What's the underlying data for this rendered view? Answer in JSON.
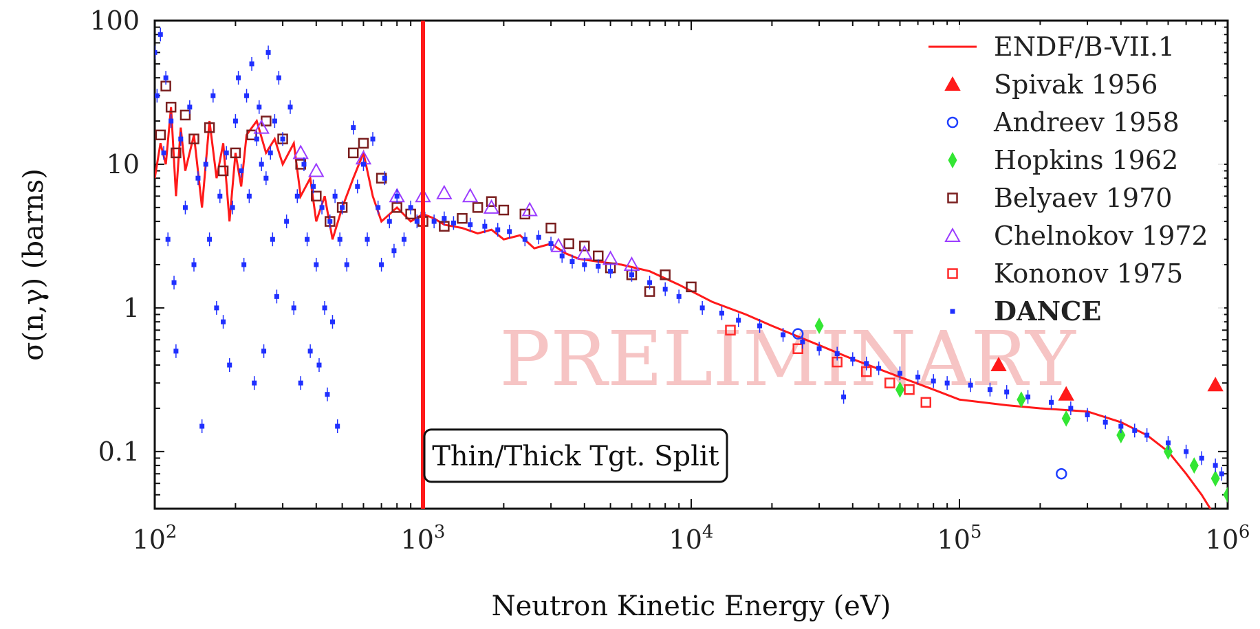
{
  "chart_data": {
    "type": "scatter",
    "xlabel": "Neutron Kinetic Energy (eV)",
    "ylabel": "σ(n,γ) (barns)",
    "xscale": "log",
    "yscale": "log",
    "xlim": [
      100,
      1000000
    ],
    "ylim": [
      0.04,
      100
    ],
    "x_ticks": [
      {
        "value": 100,
        "base": "10",
        "exp": "2"
      },
      {
        "value": 1000,
        "base": "10",
        "exp": "3"
      },
      {
        "value": 10000,
        "base": "10",
        "exp": "4"
      },
      {
        "value": 100000,
        "base": "10",
        "exp": "5"
      },
      {
        "value": 1000000,
        "base": "10",
        "exp": "6"
      }
    ],
    "y_ticks": [
      {
        "value": 100,
        "label": "100"
      },
      {
        "value": 10,
        "label": "10"
      },
      {
        "value": 1,
        "label": "1"
      },
      {
        "value": 0.1,
        "label": "0.1"
      }
    ],
    "watermark": "PRELIMINARY",
    "annotation": {
      "text": "Thin/Thick Tgt. Split",
      "x": 1000
    },
    "legend_position": "top-right",
    "colors": {
      "endf": "#ff1a1a",
      "spivak": "#ff1a1a",
      "andreev": "#1f3fff",
      "hopkins": "#33e633",
      "belyaev": "#7a1f1f",
      "chelnokov": "#9b3cff",
      "kononov": "#ff2a2a",
      "dance": "#1f2fff",
      "split_line": "#ff1a1a"
    },
    "series": [
      {
        "name": "ENDF/B-VII.1",
        "key": "endf",
        "marker": "line",
        "points": [
          [
            100,
            8
          ],
          [
            105,
            14
          ],
          [
            110,
            10
          ],
          [
            115,
            25
          ],
          [
            120,
            6
          ],
          [
            125,
            18
          ],
          [
            130,
            9
          ],
          [
            140,
            16
          ],
          [
            150,
            5
          ],
          [
            160,
            20
          ],
          [
            170,
            8
          ],
          [
            180,
            14
          ],
          [
            190,
            4
          ],
          [
            200,
            12
          ],
          [
            210,
            7
          ],
          [
            220,
            16
          ],
          [
            240,
            20
          ],
          [
            260,
            12
          ],
          [
            280,
            15
          ],
          [
            300,
            10
          ],
          [
            330,
            14
          ],
          [
            350,
            6
          ],
          [
            380,
            8
          ],
          [
            400,
            4
          ],
          [
            430,
            6
          ],
          [
            460,
            3
          ],
          [
            500,
            5
          ],
          [
            550,
            8
          ],
          [
            600,
            12
          ],
          [
            650,
            6
          ],
          [
            700,
            4
          ],
          [
            800,
            5
          ],
          [
            900,
            4
          ],
          [
            1000,
            4.5
          ],
          [
            1100,
            4.2
          ],
          [
            1200,
            3.8
          ],
          [
            1400,
            3.6
          ],
          [
            1600,
            3.3
          ],
          [
            1800,
            3.5
          ],
          [
            2000,
            3.0
          ],
          [
            2300,
            3.2
          ],
          [
            2600,
            2.6
          ],
          [
            3000,
            2.8
          ],
          [
            3400,
            2.4
          ],
          [
            3800,
            2.2
          ],
          [
            4500,
            2.1
          ],
          [
            5500,
            2.0
          ],
          [
            7000,
            1.8
          ],
          [
            9000,
            1.45
          ],
          [
            12000,
            1.1
          ],
          [
            16000,
            0.9
          ],
          [
            20000,
            0.75
          ],
          [
            30000,
            0.55
          ],
          [
            40000,
            0.44
          ],
          [
            60000,
            0.33
          ],
          [
            80000,
            0.27
          ],
          [
            100000,
            0.23
          ],
          [
            150000,
            0.21
          ],
          [
            200000,
            0.2
          ],
          [
            300000,
            0.19
          ],
          [
            400000,
            0.16
          ],
          [
            500000,
            0.13
          ],
          [
            600000,
            0.1
          ],
          [
            700000,
            0.07
          ],
          [
            800000,
            0.05
          ],
          [
            900000,
            0.035
          ]
        ]
      },
      {
        "name": "Spivak 1956",
        "key": "spivak",
        "marker": "triangle-filled",
        "points": [
          [
            140000,
            0.4
          ],
          [
            250000,
            0.25
          ],
          [
            900000,
            0.29
          ]
        ]
      },
      {
        "name": "Andreev 1958",
        "key": "andreev",
        "marker": "circle-open",
        "points": [
          [
            25000,
            0.66
          ],
          [
            240000,
            0.07
          ]
        ]
      },
      {
        "name": "Hopkins 1962",
        "key": "hopkins",
        "marker": "diamond-filled",
        "points": [
          [
            30000,
            0.75
          ],
          [
            60000,
            0.27
          ],
          [
            170000,
            0.23
          ],
          [
            250000,
            0.17
          ],
          [
            400000,
            0.13
          ],
          [
            600000,
            0.1
          ],
          [
            750000,
            0.08
          ],
          [
            900000,
            0.065
          ],
          [
            1000000,
            0.05
          ]
        ]
      },
      {
        "name": "Belyaev 1970",
        "key": "belyaev",
        "marker": "square-open",
        "points": [
          [
            105,
            16
          ],
          [
            110,
            35
          ],
          [
            115,
            25
          ],
          [
            120,
            12
          ],
          [
            130,
            22
          ],
          [
            140,
            15
          ],
          [
            160,
            18
          ],
          [
            180,
            9
          ],
          [
            200,
            12
          ],
          [
            230,
            16
          ],
          [
            260,
            20
          ],
          [
            300,
            15
          ],
          [
            350,
            10
          ],
          [
            400,
            6
          ],
          [
            450,
            4
          ],
          [
            500,
            5
          ],
          [
            550,
            12
          ],
          [
            600,
            14
          ],
          [
            700,
            8
          ],
          [
            800,
            5
          ],
          [
            900,
            4.5
          ],
          [
            1000,
            4
          ],
          [
            1200,
            3.7
          ],
          [
            1400,
            4.2
          ],
          [
            1600,
            5
          ],
          [
            1800,
            5.5
          ],
          [
            2000,
            4.8
          ],
          [
            2400,
            4.5
          ],
          [
            3000,
            3.6
          ],
          [
            3500,
            2.8
          ],
          [
            4000,
            2.7
          ],
          [
            4500,
            2.3
          ],
          [
            5000,
            1.9
          ],
          [
            6000,
            1.7
          ],
          [
            7000,
            1.3
          ],
          [
            8000,
            1.7
          ],
          [
            10000,
            1.4
          ]
        ]
      },
      {
        "name": "Chelnokov 1972",
        "key": "chelnokov",
        "marker": "triangle-open",
        "points": [
          [
            250,
            18
          ],
          [
            350,
            12
          ],
          [
            400,
            9
          ],
          [
            600,
            11
          ],
          [
            800,
            6
          ],
          [
            1000,
            6
          ],
          [
            1200,
            6.3
          ],
          [
            1500,
            6
          ],
          [
            1800,
            5
          ],
          [
            2500,
            4.8
          ],
          [
            3200,
            2.7
          ],
          [
            4000,
            2.4
          ],
          [
            5000,
            2.2
          ],
          [
            6000,
            2.0
          ]
        ]
      },
      {
        "name": "Kononov 1975",
        "key": "kononov",
        "marker": "square-open",
        "points": [
          [
            14000,
            0.7
          ],
          [
            25000,
            0.52
          ],
          [
            35000,
            0.42
          ],
          [
            45000,
            0.36
          ],
          [
            55000,
            0.3
          ],
          [
            65000,
            0.27
          ],
          [
            75000,
            0.22
          ]
        ]
      },
      {
        "name": "DANCE",
        "key": "dance",
        "marker": "dot",
        "points": [
          [
            100,
            60
          ],
          [
            102,
            30
          ],
          [
            105,
            80
          ],
          [
            108,
            12
          ],
          [
            110,
            40
          ],
          [
            112,
            3
          ],
          [
            115,
            20
          ],
          [
            118,
            1.5
          ],
          [
            120,
            0.5
          ],
          [
            125,
            15
          ],
          [
            130,
            5
          ],
          [
            135,
            25
          ],
          [
            140,
            2
          ],
          [
            145,
            8
          ],
          [
            150,
            0.15
          ],
          [
            155,
            10
          ],
          [
            160,
            3
          ],
          [
            165,
            30
          ],
          [
            170,
            1
          ],
          [
            175,
            6
          ],
          [
            180,
            0.8
          ],
          [
            185,
            12
          ],
          [
            190,
            0.4
          ],
          [
            195,
            5
          ],
          [
            200,
            20
          ],
          [
            205,
            40
          ],
          [
            210,
            9
          ],
          [
            215,
            2
          ],
          [
            220,
            30
          ],
          [
            225,
            6
          ],
          [
            230,
            50
          ],
          [
            235,
            0.3
          ],
          [
            240,
            15
          ],
          [
            245,
            25
          ],
          [
            250,
            10
          ],
          [
            255,
            0.5
          ],
          [
            260,
            8
          ],
          [
            265,
            60
          ],
          [
            270,
            12
          ],
          [
            275,
            3
          ],
          [
            280,
            20
          ],
          [
            285,
            1.2
          ],
          [
            290,
            40
          ],
          [
            300,
            15
          ],
          [
            310,
            4
          ],
          [
            320,
            25
          ],
          [
            330,
            1
          ],
          [
            340,
            6
          ],
          [
            350,
            0.3
          ],
          [
            360,
            10
          ],
          [
            370,
            3
          ],
          [
            380,
            0.5
          ],
          [
            390,
            7
          ],
          [
            400,
            2
          ],
          [
            410,
            0.4
          ],
          [
            420,
            5
          ],
          [
            430,
            1
          ],
          [
            440,
            0.25
          ],
          [
            450,
            4
          ],
          [
            460,
            0.8
          ],
          [
            470,
            6
          ],
          [
            480,
            0.15
          ],
          [
            490,
            3
          ],
          [
            500,
            5
          ],
          [
            520,
            2
          ],
          [
            550,
            18
          ],
          [
            570,
            7
          ],
          [
            600,
            10
          ],
          [
            620,
            3
          ],
          [
            650,
            15
          ],
          [
            680,
            5
          ],
          [
            700,
            2
          ],
          [
            720,
            8
          ],
          [
            750,
            4
          ],
          [
            780,
            2.5
          ],
          [
            800,
            6
          ],
          [
            850,
            3
          ],
          [
            900,
            5
          ],
          [
            950,
            4
          ],
          [
            1000,
            4.5
          ],
          [
            1100,
            4
          ],
          [
            1200,
            4.2
          ],
          [
            1300,
            3.9
          ],
          [
            1500,
            3.8
          ],
          [
            1700,
            3.7
          ],
          [
            1900,
            3.5
          ],
          [
            2100,
            3.4
          ],
          [
            2400,
            3.0
          ],
          [
            2700,
            3.1
          ],
          [
            3000,
            2.8
          ],
          [
            3300,
            2.3
          ],
          [
            3600,
            2.1
          ],
          [
            4000,
            2.0
          ],
          [
            4500,
            1.95
          ],
          [
            5000,
            1.8
          ],
          [
            6000,
            1.7
          ],
          [
            7000,
            1.5
          ],
          [
            8000,
            1.35
          ],
          [
            9000,
            1.2
          ],
          [
            11000,
            1.0
          ],
          [
            13000,
            0.92
          ],
          [
            15000,
            0.82
          ],
          [
            18000,
            0.75
          ],
          [
            22000,
            0.65
          ],
          [
            26000,
            0.58
          ],
          [
            30000,
            0.52
          ],
          [
            35000,
            0.48
          ],
          [
            37000,
            0.24
          ],
          [
            40000,
            0.44
          ],
          [
            45000,
            0.41
          ],
          [
            50000,
            0.38
          ],
          [
            60000,
            0.35
          ],
          [
            70000,
            0.33
          ],
          [
            80000,
            0.31
          ],
          [
            90000,
            0.3
          ],
          [
            110000,
            0.29
          ],
          [
            130000,
            0.27
          ],
          [
            150000,
            0.26
          ],
          [
            180000,
            0.24
          ],
          [
            220000,
            0.22
          ],
          [
            260000,
            0.2
          ],
          [
            300000,
            0.18
          ],
          [
            350000,
            0.16
          ],
          [
            400000,
            0.15
          ],
          [
            450000,
            0.14
          ],
          [
            500000,
            0.13
          ],
          [
            600000,
            0.115
          ],
          [
            700000,
            0.1
          ],
          [
            800000,
            0.09
          ],
          [
            900000,
            0.08
          ],
          [
            950000,
            0.07
          ]
        ]
      }
    ]
  }
}
